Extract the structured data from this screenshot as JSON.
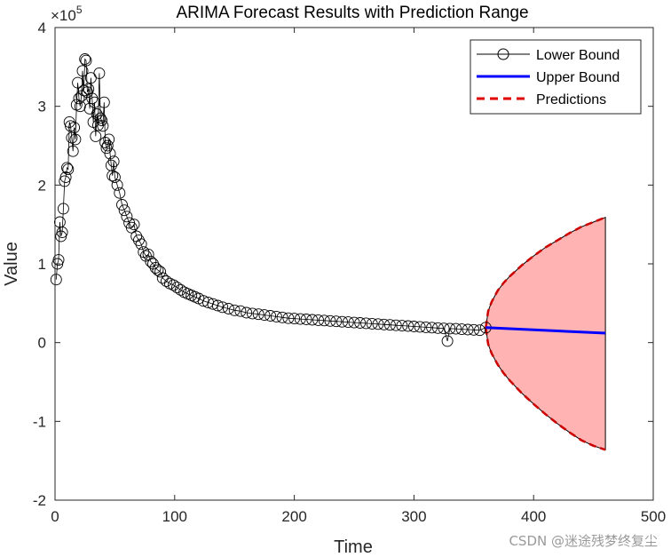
{
  "chart_data": {
    "type": "line",
    "title": "ARIMA Forecast Results with Prediction Range",
    "xlabel": "Time",
    "ylabel": "Value",
    "xlim": [
      0,
      500
    ],
    "ylim": [
      -200000,
      400000
    ],
    "x_ticks": [
      0,
      100,
      200,
      300,
      400,
      500
    ],
    "x_tick_labels": [
      "0",
      "100",
      "200",
      "300",
      "400",
      "500"
    ],
    "y_ticks": [
      -200000,
      -100000,
      0,
      100000,
      200000,
      300000,
      400000
    ],
    "y_tick_labels": [
      "-2",
      "-1",
      "0",
      "1",
      "2",
      "3",
      "4"
    ],
    "y_exponent_base": "×10",
    "y_exponent_power": "5",
    "grid": false,
    "legend_position": "top-right",
    "legend": [
      {
        "label": "Lower Bound",
        "style": "line-circle",
        "color": "#000000"
      },
      {
        "label": "Upper Bound",
        "style": "solid",
        "color": "#0000ff"
      },
      {
        "label": "Predictions",
        "style": "dashed",
        "color": "#e00000"
      }
    ],
    "fill_color": "#ffb3b3",
    "series": [
      {
        "name": "Lower Bound",
        "role": "observed",
        "x": [
          1,
          2,
          3,
          4,
          5,
          6,
          7,
          8,
          9,
          10,
          11,
          12,
          13,
          14,
          15,
          16,
          17,
          18,
          19,
          20,
          21,
          22,
          23,
          24,
          25,
          26,
          27,
          28,
          29,
          30,
          31,
          32,
          33,
          34,
          35,
          36,
          37,
          38,
          39,
          40,
          41,
          42,
          43,
          44,
          45,
          46,
          47,
          48,
          49,
          50,
          52,
          54,
          56,
          58,
          60,
          62,
          64,
          66,
          68,
          70,
          72,
          74,
          76,
          78,
          80,
          82,
          84,
          86,
          88,
          90,
          93,
          96,
          99,
          102,
          105,
          108,
          111,
          114,
          117,
          120,
          124,
          128,
          132,
          136,
          140,
          145,
          150,
          155,
          160,
          165,
          170,
          175,
          180,
          185,
          190,
          195,
          200,
          205,
          210,
          215,
          220,
          225,
          230,
          235,
          240,
          245,
          250,
          255,
          260,
          265,
          270,
          275,
          280,
          285,
          290,
          295,
          300,
          305,
          310,
          315,
          320,
          325,
          328,
          330,
          335,
          340,
          345,
          350,
          355,
          360
        ],
        "y": [
          80000,
          100000,
          105000,
          153000,
          135000,
          140000,
          170000,
          205000,
          210000,
          222000,
          220000,
          280000,
          275000,
          260000,
          243000,
          273000,
          258000,
          302000,
          330000,
          310000,
          300000,
          313000,
          345000,
          320000,
          360000,
          358000,
          318000,
          322000,
          297000,
          336000,
          310000,
          280000,
          305000,
          262000,
          290000,
          276000,
          342000,
          285000,
          282000,
          275000,
          305000,
          254000,
          247000,
          250000,
          258000,
          240000,
          225000,
          212000,
          230000,
          210000,
          200000,
          190000,
          175000,
          168000,
          160000,
          152000,
          146000,
          150000,
          135000,
          130000,
          125000,
          115000,
          110000,
          112000,
          103000,
          100000,
          95000,
          92000,
          90000,
          82000,
          78000,
          75000,
          73000,
          70000,
          67000,
          64000,
          62000,
          60000,
          58000,
          56000,
          53000,
          51000,
          49000,
          47000,
          45000,
          43000,
          41000,
          40000,
          38000,
          37000,
          36000,
          35000,
          34000,
          33000,
          32000,
          31000,
          30500,
          30000,
          29500,
          29000,
          28500,
          28000,
          27500,
          27000,
          26500,
          26000,
          25500,
          25000,
          24500,
          24000,
          23500,
          23000,
          22500,
          22000,
          21500,
          21000,
          20500,
          20000,
          19500,
          19000,
          18500,
          18000,
          2000,
          17800,
          17500,
          17000,
          16500,
          16200,
          15800,
          19000
        ]
      },
      {
        "name": "Upper Bound",
        "x": [
          360,
          460
        ],
        "y": [
          19000,
          12000
        ]
      },
      {
        "name": "Predictions",
        "role": "prediction-interval",
        "x": [
          360,
          362,
          365,
          370,
          375,
          380,
          390,
          400,
          410,
          420,
          430,
          440,
          450,
          460
        ],
        "upper": [
          19000,
          40000,
          52000,
          66000,
          76000,
          84000,
          98000,
          110000,
          121000,
          130000,
          139000,
          147000,
          153000,
          159000
        ],
        "lower": [
          19000,
          -2000,
          -14000,
          -28000,
          -39000,
          -48000,
          -64000,
          -78000,
          -91000,
          -103000,
          -114000,
          -124000,
          -131000,
          -136000
        ]
      }
    ]
  },
  "watermark": "CSDN @迷途残梦终复尘"
}
